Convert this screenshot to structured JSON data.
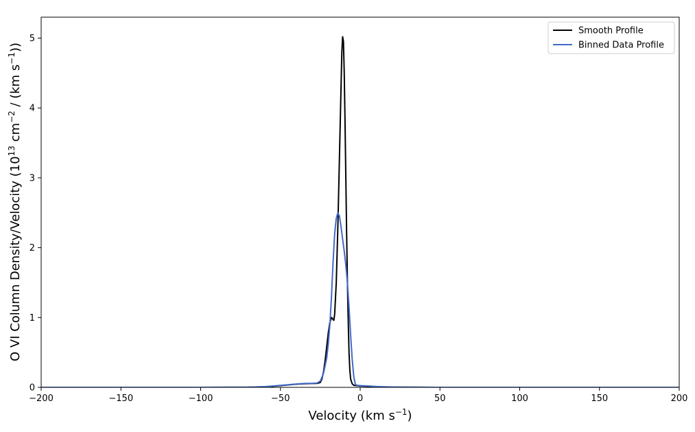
{
  "chart_data": {
    "type": "line",
    "title": "",
    "xlabel": "Velocity (km s",
    "xlabel_sup": "−1",
    "xlabel_end": ")",
    "ylabel": "O VI Column Density/Velocity (10",
    "ylabel_sup1": "13",
    "ylabel_mid": " cm",
    "ylabel_sup2": "−2",
    "ylabel_mid2": " / (km s",
    "ylabel_sup3": "−1",
    "ylabel_end": "))",
    "xlim": [
      -200,
      200
    ],
    "ylim": [
      0,
      5.3
    ],
    "xticks": [
      -200,
      -150,
      -100,
      -50,
      0,
      50,
      100,
      150,
      200
    ],
    "xtick_labels": [
      "−200",
      "−150",
      "−100",
      "−50",
      "0",
      "50",
      "100",
      "150",
      "200"
    ],
    "yticks": [
      0,
      1,
      2,
      3,
      4,
      5
    ],
    "ytick_labels": [
      "0",
      "1",
      "2",
      "3",
      "4",
      "5"
    ],
    "grid": false,
    "legend_position": "top-right",
    "series": [
      {
        "name": "Smooth Profile",
        "color": "#000000",
        "points": [
          [
            -200,
            0
          ],
          [
            -150,
            0
          ],
          [
            -100,
            0
          ],
          [
            -70,
            0.002
          ],
          [
            -60,
            0.008
          ],
          [
            -55,
            0.015
          ],
          [
            -50,
            0.025
          ],
          [
            -45,
            0.035
          ],
          [
            -40,
            0.045
          ],
          [
            -35,
            0.052
          ],
          [
            -30,
            0.055
          ],
          [
            -27,
            0.056
          ],
          [
            -25,
            0.07
          ],
          [
            -24,
            0.12
          ],
          [
            -23,
            0.22
          ],
          [
            -22,
            0.38
          ],
          [
            -21,
            0.58
          ],
          [
            -20,
            0.78
          ],
          [
            -19,
            0.93
          ],
          [
            -18,
            1.0
          ],
          [
            -17.5,
            0.99
          ],
          [
            -17,
            0.97
          ],
          [
            -16.5,
            0.96
          ],
          [
            -16,
            1.05
          ],
          [
            -15,
            1.5
          ],
          [
            -14,
            2.3
          ],
          [
            -13,
            3.3
          ],
          [
            -12,
            4.3
          ],
          [
            -11.5,
            4.8
          ],
          [
            -11,
            5.02
          ],
          [
            -10.5,
            4.95
          ],
          [
            -10,
            4.5
          ],
          [
            -9.5,
            3.8
          ],
          [
            -9,
            3.0
          ],
          [
            -8.5,
            2.2
          ],
          [
            -8,
            1.5
          ],
          [
            -7.5,
            0.95
          ],
          [
            -7,
            0.5
          ],
          [
            -6.5,
            0.25
          ],
          [
            -6,
            0.12
          ],
          [
            -5,
            0.05
          ],
          [
            -4,
            0.03
          ],
          [
            -2,
            0.025
          ],
          [
            0,
            0.02
          ],
          [
            5,
            0.015
          ],
          [
            10,
            0.008
          ],
          [
            20,
            0.003
          ],
          [
            50,
            0
          ],
          [
            100,
            0
          ],
          [
            150,
            0
          ],
          [
            200,
            0
          ]
        ]
      },
      {
        "name": "Binned Data Profile",
        "color": "#4169c8",
        "points": [
          [
            -200,
            0
          ],
          [
            -150,
            0
          ],
          [
            -100,
            0
          ],
          [
            -70,
            0.003
          ],
          [
            -60,
            0.01
          ],
          [
            -55,
            0.018
          ],
          [
            -50,
            0.028
          ],
          [
            -45,
            0.038
          ],
          [
            -40,
            0.048
          ],
          [
            -35,
            0.055
          ],
          [
            -30,
            0.058
          ],
          [
            -27,
            0.062
          ],
          [
            -25,
            0.09
          ],
          [
            -23,
            0.2
          ],
          [
            -21,
            0.42
          ],
          [
            -20,
            0.62
          ],
          [
            -19,
            0.9
          ],
          [
            -18,
            1.3
          ],
          [
            -17,
            1.8
          ],
          [
            -16,
            2.2
          ],
          [
            -15,
            2.42
          ],
          [
            -14,
            2.5
          ],
          [
            -13,
            2.45
          ],
          [
            -12,
            2.3
          ],
          [
            -11,
            2.12
          ],
          [
            -10,
            1.95
          ],
          [
            -9,
            1.75
          ],
          [
            -8,
            1.5
          ],
          [
            -7,
            1.15
          ],
          [
            -6,
            0.75
          ],
          [
            -5,
            0.4
          ],
          [
            -4,
            0.15
          ],
          [
            -3,
            0.04
          ],
          [
            -2,
            0.03
          ],
          [
            0,
            0.025
          ],
          [
            5,
            0.02
          ],
          [
            10,
            0.012
          ],
          [
            20,
            0.005
          ],
          [
            50,
            0
          ],
          [
            100,
            0
          ],
          [
            150,
            0
          ],
          [
            200,
            0
          ]
        ]
      }
    ]
  }
}
